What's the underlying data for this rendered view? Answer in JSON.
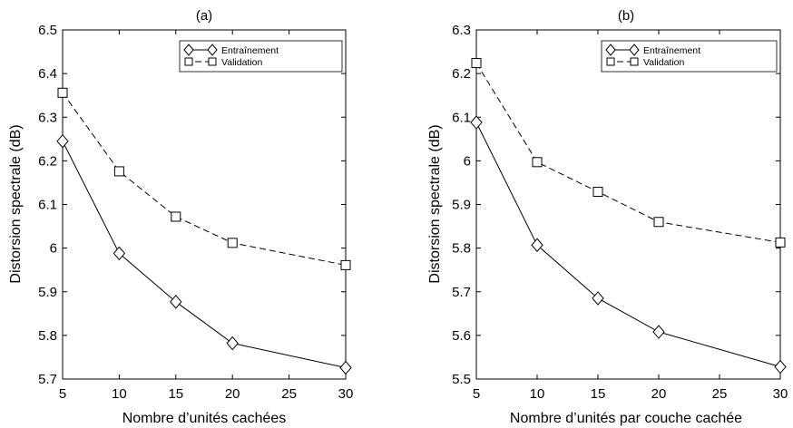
{
  "chart_data": [
    {
      "type": "line",
      "title": "(a)",
      "xlabel": "Nombre d’unités cachées",
      "ylabel": "Distorsion spectrale (dB)",
      "x": [
        5,
        10,
        15,
        20,
        30
      ],
      "xlim": [
        5,
        30
      ],
      "ylim": [
        5.7,
        6.5
      ],
      "xticks": [
        "5",
        "10",
        "15",
        "20",
        "25",
        "30"
      ],
      "yticks": [
        "5.7",
        "5.8",
        "5.9",
        "6",
        "6.1",
        "6.2",
        "6.3",
        "6.4",
        "6.5"
      ],
      "legend_position": "top-right",
      "grid": false,
      "series": [
        {
          "name": "Entraînement",
          "values": [
            6.245,
            5.988,
            5.877,
            5.782,
            5.726
          ],
          "marker": "diamond",
          "linestyle": "solid"
        },
        {
          "name": "Validation",
          "values": [
            6.356,
            6.176,
            6.072,
            6.012,
            5.961
          ],
          "marker": "square",
          "linestyle": "dashed"
        }
      ]
    },
    {
      "type": "line",
      "title": "(b)",
      "xlabel": "Nombre d’unités par couche cachée",
      "ylabel": "Distorsion spectrale (dB)",
      "x": [
        5,
        10,
        15,
        20,
        30
      ],
      "xlim": [
        5,
        30
      ],
      "ylim": [
        5.5,
        6.3
      ],
      "xticks": [
        "5",
        "10",
        "15",
        "20",
        "25",
        "30"
      ],
      "yticks": [
        "5.5",
        "5.6",
        "5.7",
        "5.8",
        "5.9",
        "6",
        "6.1",
        "6.2",
        "6.3"
      ],
      "legend_position": "top-right",
      "grid": false,
      "series": [
        {
          "name": "Entraînement",
          "values": [
            6.088,
            5.807,
            5.685,
            5.608,
            5.528
          ],
          "marker": "diamond",
          "linestyle": "solid"
        },
        {
          "name": "Validation",
          "values": [
            6.224,
            5.997,
            5.929,
            5.86,
            5.813
          ],
          "marker": "square",
          "linestyle": "dashed"
        }
      ]
    }
  ]
}
